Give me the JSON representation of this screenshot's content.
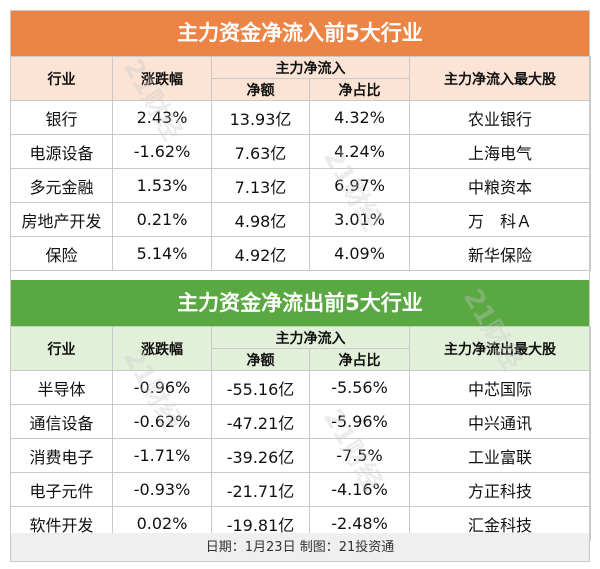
{
  "inflow": {
    "title": "主力资金净流入前5大行业",
    "headers": {
      "industry": "行业",
      "change": "涨跌幅",
      "net_group": "主力净流入",
      "amount": "净额",
      "ratio": "净占比",
      "top_stock": "主力净流入最大股"
    },
    "rows": [
      {
        "industry": "银行",
        "change": "2.43%",
        "amount": "13.93亿",
        "ratio": "4.32%",
        "stock": "农业银行"
      },
      {
        "industry": "电源设备",
        "change": "-1.62%",
        "amount": "7.63亿",
        "ratio": "4.24%",
        "stock": "上海电气"
      },
      {
        "industry": "多元金融",
        "change": "1.53%",
        "amount": "7.13亿",
        "ratio": "6.97%",
        "stock": "中粮资本"
      },
      {
        "industry": "房地产开发",
        "change": "0.21%",
        "amount": "4.98亿",
        "ratio": "3.01%",
        "stock": "万　科Ａ"
      },
      {
        "industry": "保险",
        "change": "5.14%",
        "amount": "4.92亿",
        "ratio": "4.09%",
        "stock": "新华保险"
      }
    ],
    "color": "#ec8446"
  },
  "outflow": {
    "title": "主力资金净流出前5大行业",
    "headers": {
      "industry": "行业",
      "change": "涨跌幅",
      "net_group": "主力净流入",
      "amount": "净额",
      "ratio": "净占比",
      "top_stock": "主力净流出最大股"
    },
    "rows": [
      {
        "industry": "半导体",
        "change": "-0.96%",
        "amount": "-55.16亿",
        "ratio": "-5.56%",
        "stock": "中芯国际"
      },
      {
        "industry": "通信设备",
        "change": "-0.62%",
        "amount": "-47.21亿",
        "ratio": "-5.96%",
        "stock": "中兴通讯"
      },
      {
        "industry": "消费电子",
        "change": "-1.71%",
        "amount": "-39.26亿",
        "ratio": "-7.5%",
        "stock": "工业富联"
      },
      {
        "industry": "电子元件",
        "change": "-0.93%",
        "amount": "-21.71亿",
        "ratio": "-4.16%",
        "stock": "方正科技"
      },
      {
        "industry": "软件开发",
        "change": "0.02%",
        "amount": "-19.81亿",
        "ratio": "-2.48%",
        "stock": "汇金科技"
      }
    ],
    "color": "#5aa842"
  },
  "footer": "日期：1月23日 制图：21投资通",
  "watermark": "21财经"
}
